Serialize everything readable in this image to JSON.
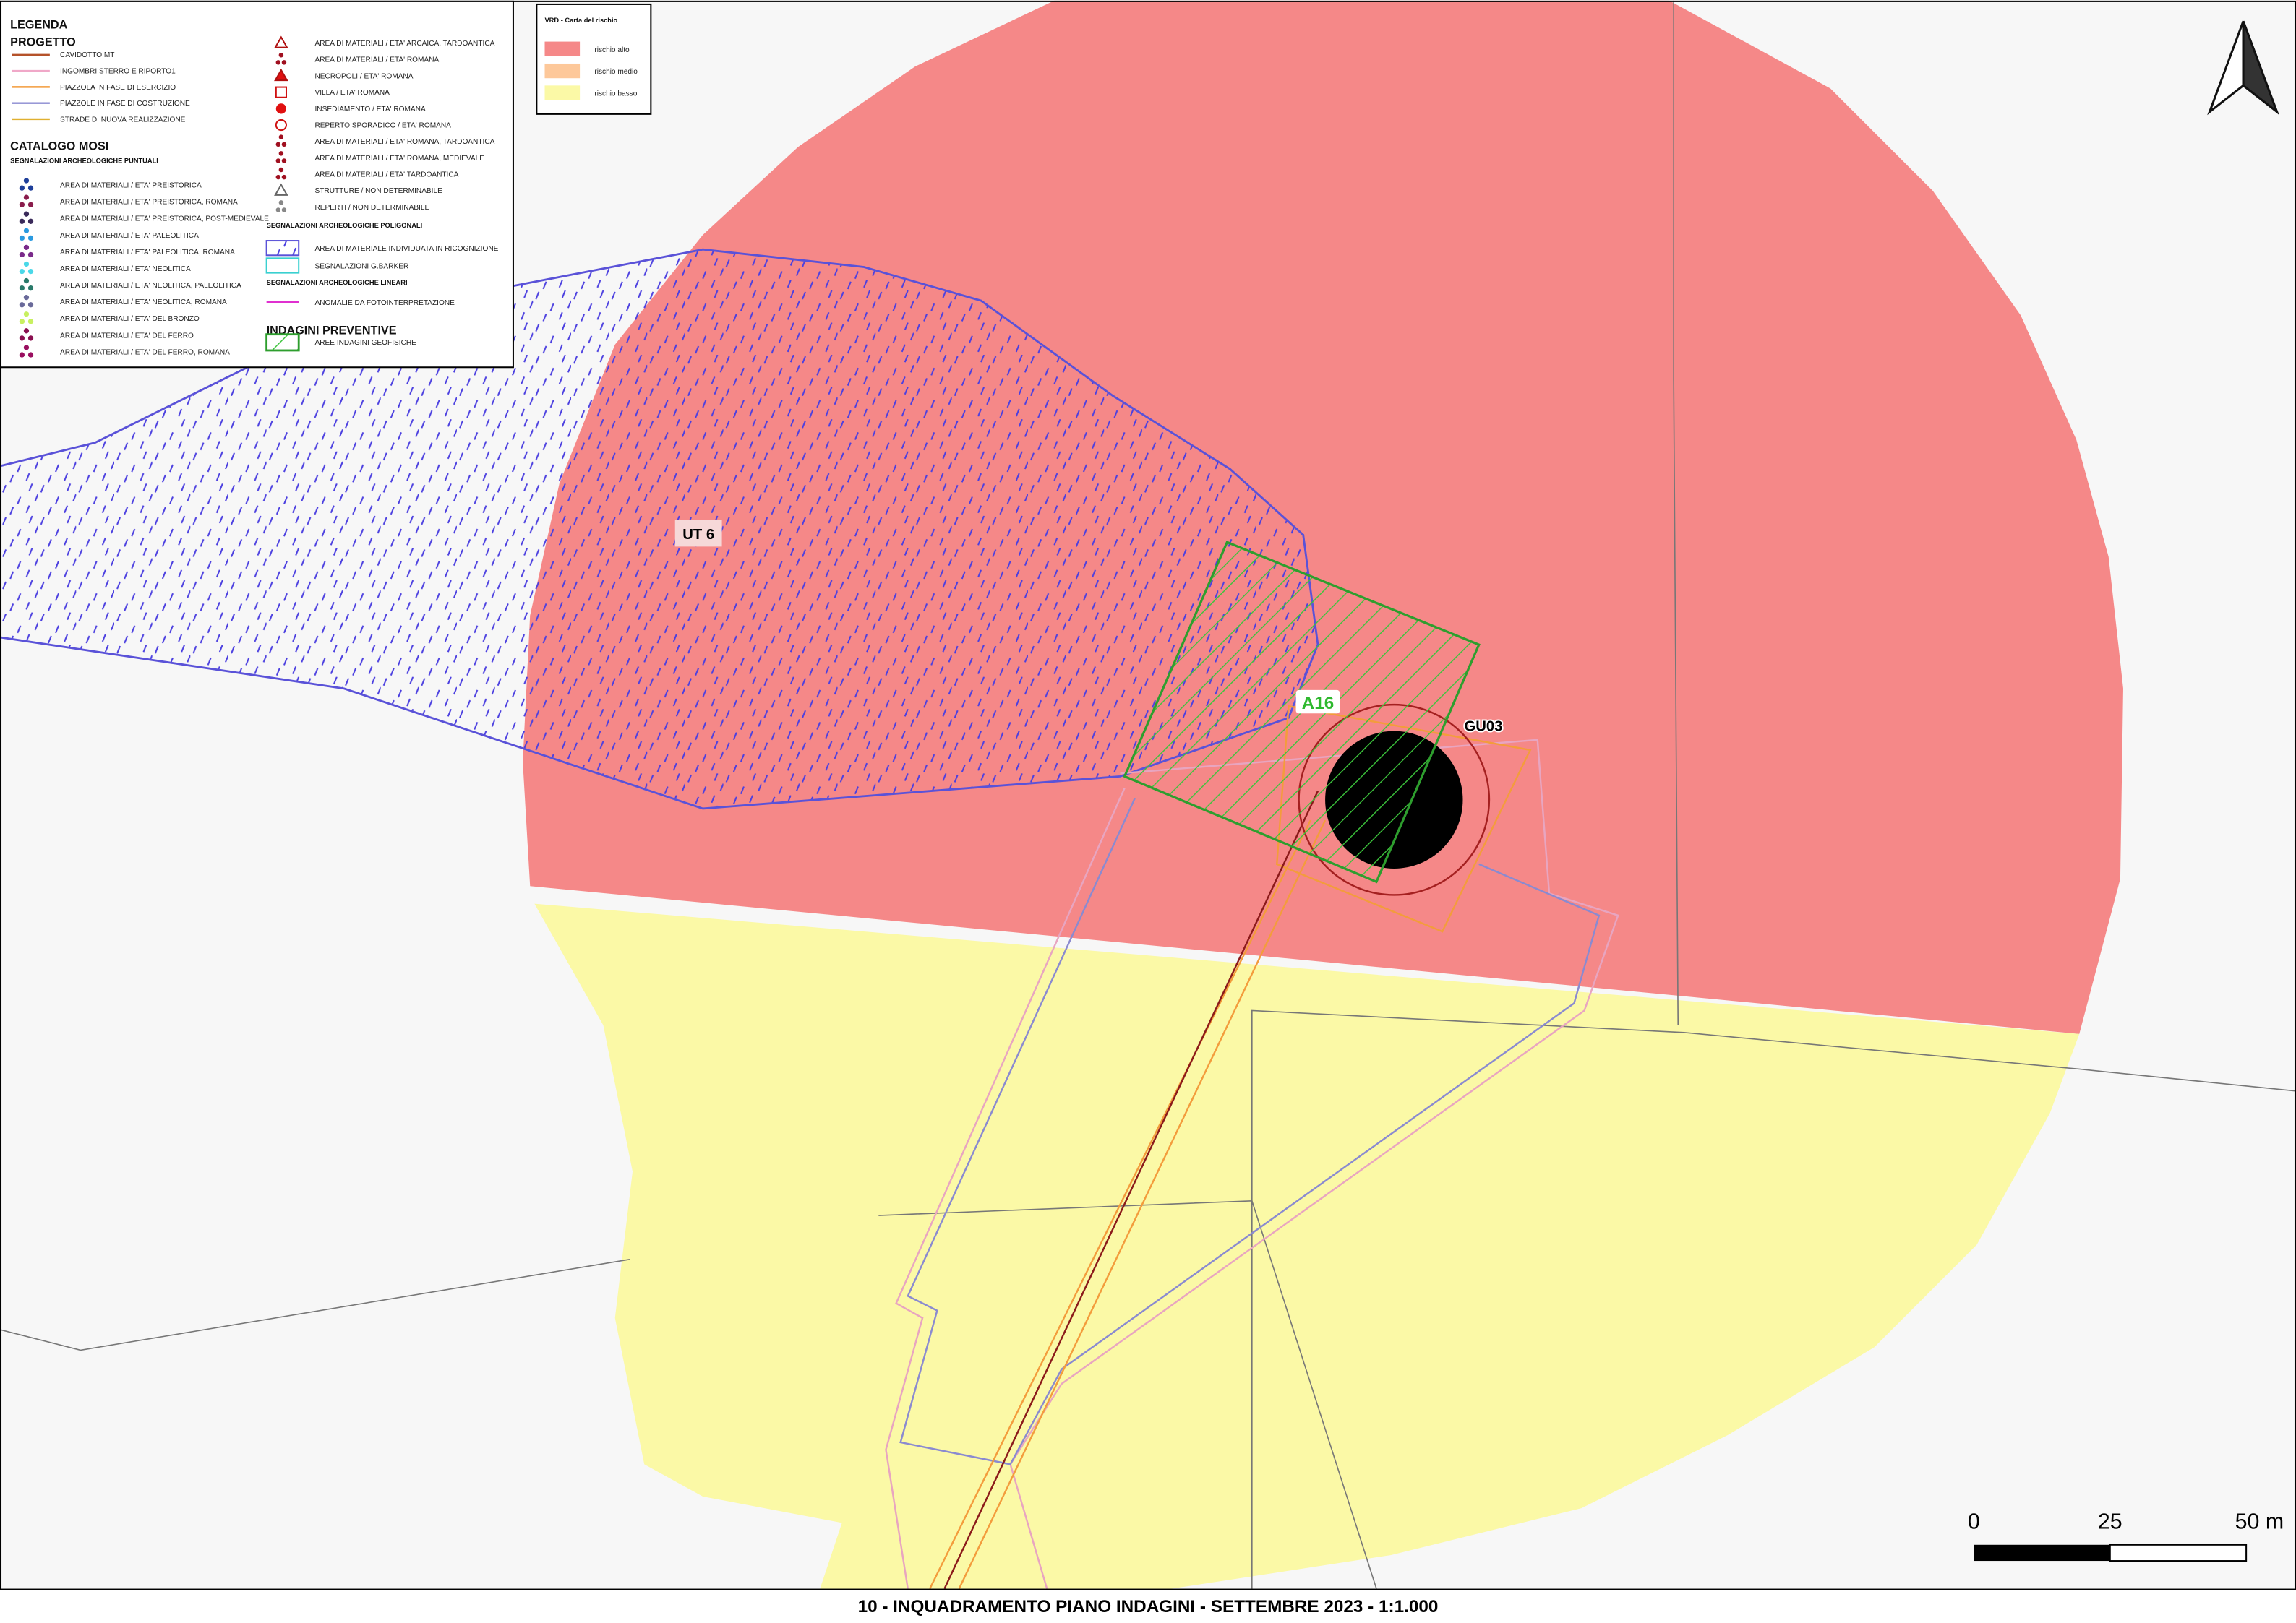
{
  "legend": {
    "title": "LEGENDA",
    "progetto": {
      "title": "PROGETTO",
      "items": [
        "CAVIDOTTO MT",
        "INGOMBRI STERRO E RIPORTO1",
        "PIAZZOLA IN FASE DI ESERCIZIO",
        "PIAZZOLE IN FASE DI COSTRUZIONE",
        "STRADE DI NUOVA REALIZZAZIONE"
      ]
    },
    "mosi": {
      "title": "CATALOGO MOSI",
      "subtitle": "SEGNALAZIONI ARCHEOLOGICHE PUNTUALI",
      "items": [
        "AREA DI MATERIALI / ETA' PREISTORICA",
        "AREA DI MATERIALI / ETA' PREISTORICA, ROMANA",
        "AREA DI MATERIALI / ETA' PREISTORICA, POST-MEDIEVALE",
        "AREA DI MATERIALI / ETA' PALEOLITICA",
        "AREA DI MATERIALI / ETA' PALEOLITICA, ROMANA",
        "AREA DI MATERIALI / ETA' NEOLITICA",
        "AREA DI MATERIALI / ETA' NEOLITICA, PALEOLITICA",
        "AREA DI MATERIALI / ETA' NEOLITICA, ROMANA",
        "AREA DI MATERIALI / ETA' DEL BRONZO",
        "AREA DI MATERIALI / ETA' DEL FERRO",
        "AREA DI MATERIALI / ETA' DEL FERRO, ROMANA"
      ],
      "items_2": [
        "AREA DI MATERIALI / ETA' ARCAICA, TARDOANTICA",
        "AREA DI MATERIALI / ETA' ROMANA",
        "NECROPOLI / ETA' ROMANA",
        "VILLA / ETA' ROMANA",
        "INSEDIAMENTO / ETA' ROMANA",
        "REPERTO SPORADICO / ETA' ROMANA",
        "AREA DI MATERIALI / ETA' ROMANA, TARDOANTICA",
        "AREA DI MATERIALI / ETA' ROMANA, MEDIEVALE",
        "AREA DI MATERIALI / ETA' TARDOANTICA",
        "STRUTTURE / NON DETERMINABILE",
        "REPERTI / NON DETERMINABILE"
      ]
    },
    "poligonali": {
      "title": "SEGNALAZIONI ARCHEOLOGICHE POLIGONALI",
      "items": [
        "AREA DI MATERIALE INDIVIDUATA IN RICOGNIZIONE",
        "SEGNALAZIONI G.BARKER"
      ]
    },
    "lineari": {
      "title": "SEGNALAZIONI ARCHEOLOGICHE LINEARI",
      "items": [
        "ANOMALIE DA FOTOINTERPRETAZIONE"
      ]
    },
    "indagini": {
      "title": "INDAGINI PREVENTIVE",
      "items": [
        "AREE INDAGINI GEOFISICHE"
      ]
    }
  },
  "risk_legend": {
    "title": "VRD - Carta del rischio",
    "items": [
      "rischio alto",
      "rischio medio",
      "rischio basso"
    ]
  },
  "map_labels": {
    "site": "UT 6",
    "survey_area": "A16",
    "turbine": "GU03"
  },
  "scale_bar": {
    "labels": [
      "0",
      "25",
      "50 m"
    ]
  },
  "footer": "10 - INQUADRAMENTO PIANO INDAGINI - SETTEMBRE 2023 - 1:1.000"
}
